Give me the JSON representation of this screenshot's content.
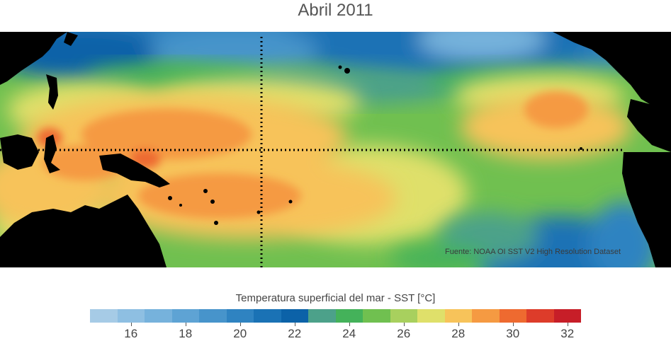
{
  "title": "Abril 2011",
  "source_note": "Fuente: NOAA OI SST V2 High Resolution Dataset",
  "colorbar": {
    "title": "Temperatura superficial del mar - SST  [°C]",
    "range": [
      15,
      33
    ],
    "step": 1,
    "colors": [
      "#a6cbe6",
      "#8ebfe2",
      "#76b2dc",
      "#5ea3d4",
      "#4794cb",
      "#2f83c1",
      "#1a72b5",
      "#0c62a8",
      "#4ca18a",
      "#44b25a",
      "#70c050",
      "#a8d05e",
      "#dfe06a",
      "#f7c35a",
      "#f59a42",
      "#ee6a30",
      "#dd3c2a",
      "#c71e28"
    ],
    "ticks": [
      "16",
      "18",
      "20",
      "22",
      "24",
      "26",
      "28",
      "30",
      "32"
    ],
    "tick_values": [
      16,
      18,
      20,
      22,
      24,
      26,
      28,
      30,
      32
    ]
  },
  "palette": {
    "land": "#000000",
    "cold": "#2f83c1",
    "warm": "#f59a42"
  }
}
